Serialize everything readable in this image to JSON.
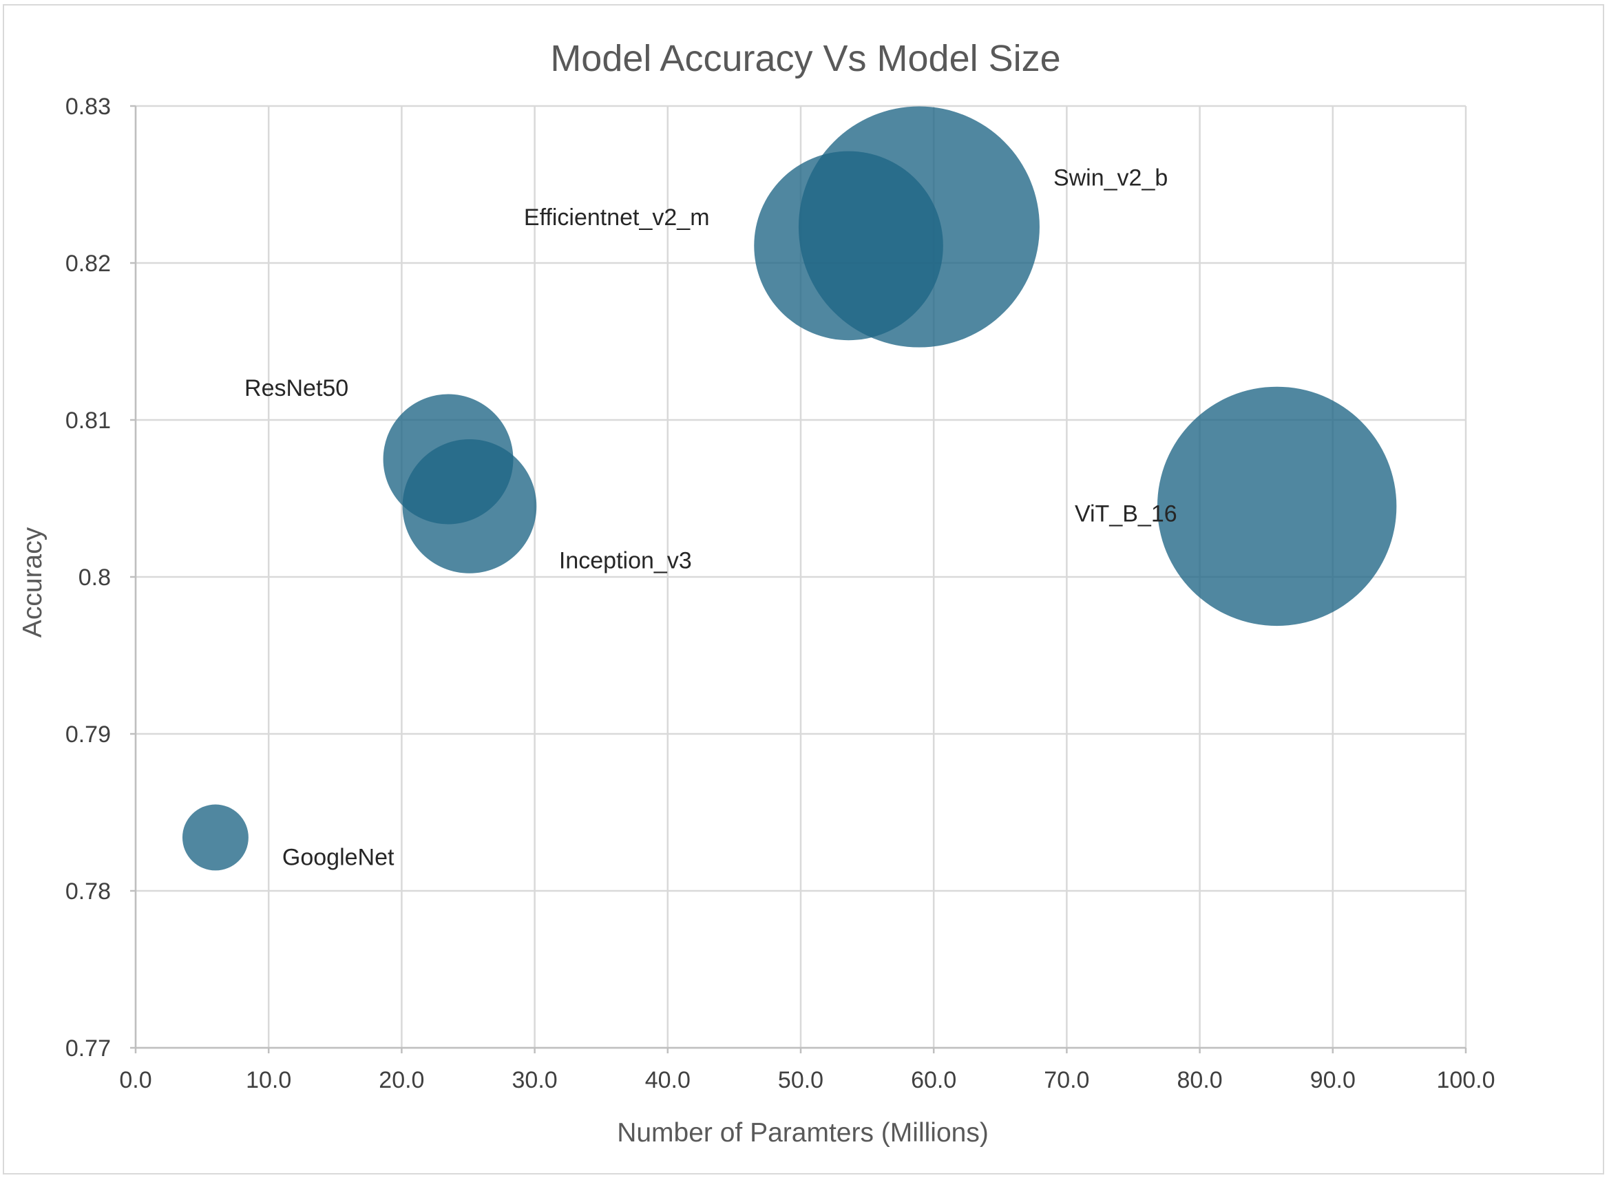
{
  "chart_data": {
    "type": "bubble",
    "title": "Model Accuracy Vs Model Size",
    "xlabel": "Number of Paramters (Millions)",
    "ylabel": "Accuracy",
    "xlim": [
      0,
      100
    ],
    "ylim": [
      0.77,
      0.83
    ],
    "x_ticks": [
      "0.0",
      "10.0",
      "20.0",
      "30.0",
      "40.0",
      "50.0",
      "60.0",
      "70.0",
      "80.0",
      "90.0",
      "100.0"
    ],
    "y_ticks": [
      "0.77",
      "0.78",
      "0.79",
      "0.8",
      "0.81",
      "0.82",
      "0.83"
    ],
    "grid": true,
    "bubble_color": "#1f6585",
    "points": [
      {
        "label": "GoogleNet",
        "x": 6.0,
        "y": 0.7834,
        "size": 6.6
      },
      {
        "label": "ResNet50",
        "x": 23.5,
        "y": 0.8075,
        "size": 25.6
      },
      {
        "label": "Inception_v3",
        "x": 25.1,
        "y": 0.8045,
        "size": 27.2
      },
      {
        "label": "Efficientnet_v2_m",
        "x": 53.6,
        "y": 0.8211,
        "size": 54.1
      },
      {
        "label": "Swin_v2_b",
        "x": 58.9,
        "y": 0.8223,
        "size": 87.9
      },
      {
        "label": "ViT_B_16",
        "x": 85.8,
        "y": 0.8045,
        "size": 86.6
      }
    ]
  }
}
